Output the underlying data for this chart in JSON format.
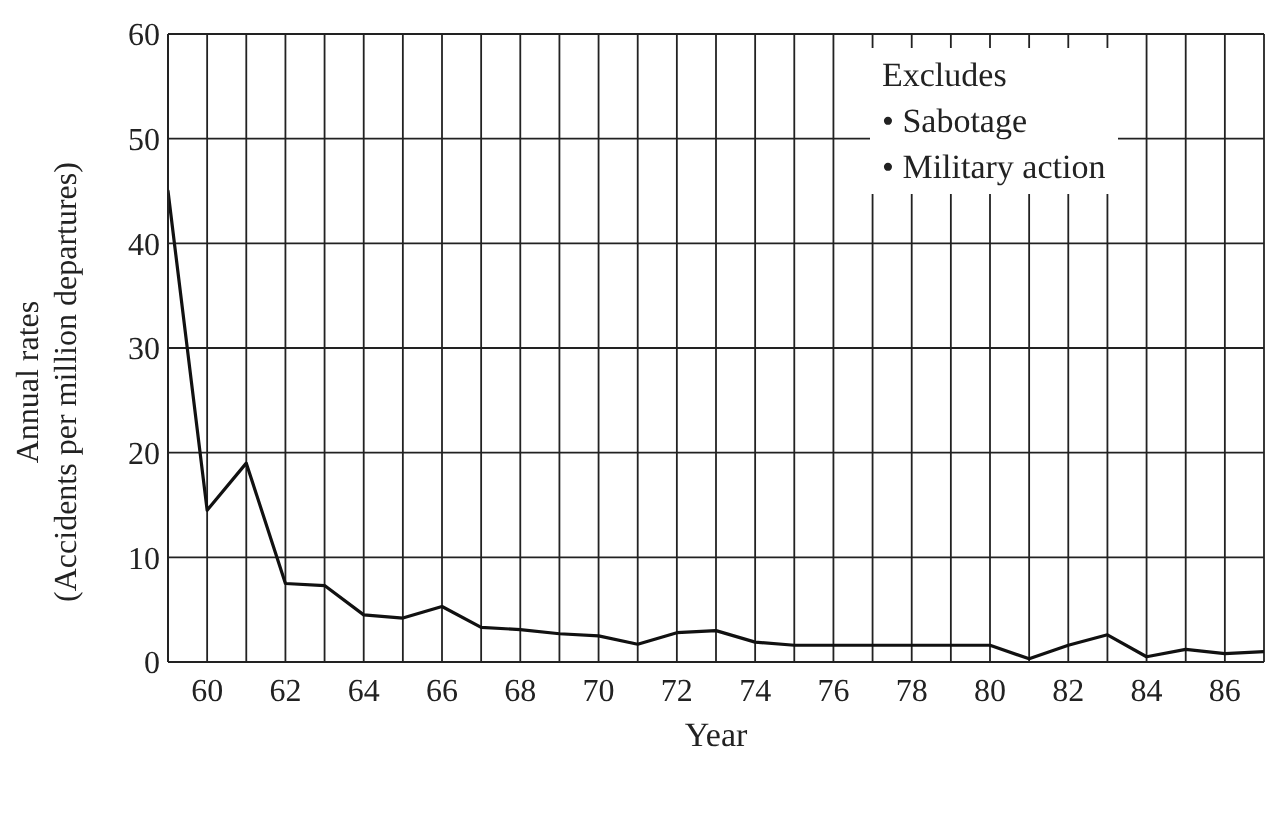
{
  "chart_data": {
    "type": "line",
    "xlabel": "Year",
    "ylabel": "Annual rates\n(Accidents per million departures)",
    "annotations": [
      "Excludes",
      "• Sabotage",
      "• Military action"
    ],
    "x": [
      59,
      60,
      61,
      62,
      63,
      64,
      65,
      66,
      67,
      68,
      69,
      70,
      71,
      72,
      73,
      74,
      75,
      76,
      77,
      78,
      79,
      80,
      81,
      82,
      83,
      84,
      85,
      86,
      87
    ],
    "series": [
      {
        "color": "#111111",
        "values": [
          45,
          14.5,
          19,
          7.5,
          7.3,
          4.5,
          4.2,
          5.3,
          3.3,
          3.1,
          2.7,
          2.5,
          1.7,
          2.8,
          3.0,
          1.9,
          1.6,
          1.6,
          1.6,
          1.6,
          1.6,
          1.6,
          0.3,
          1.6,
          2.6,
          0.5,
          1.2,
          0.8,
          1.0
        ]
      }
    ],
    "xlim": [
      59,
      87
    ],
    "ylim": [
      0,
      60
    ],
    "xticks": [
      {
        "value": 59,
        "label": null
      },
      60,
      {
        "value": 61,
        "label": null
      },
      62,
      {
        "value": 63,
        "label": null
      },
      64,
      {
        "value": 65,
        "label": null
      },
      66,
      {
        "value": 67,
        "label": null
      },
      68,
      {
        "value": 69,
        "label": null
      },
      70,
      {
        "value": 71,
        "label": null
      },
      72,
      {
        "value": 73,
        "label": null
      },
      74,
      {
        "value": 75,
        "label": null
      },
      76,
      {
        "value": 77,
        "label": null
      },
      78,
      {
        "value": 79,
        "label": null
      },
      80,
      {
        "value": 81,
        "label": null
      },
      82,
      {
        "value": 83,
        "label": null
      },
      84,
      {
        "value": 85,
        "label": null
      },
      86,
      {
        "value": 87,
        "label": null
      }
    ],
    "yticks": [
      0,
      10,
      20,
      30,
      40,
      50,
      60
    ],
    "grid": true,
    "marker": "none",
    "line_style": "solid"
  }
}
